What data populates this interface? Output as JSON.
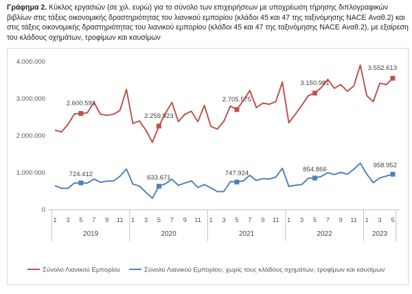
{
  "caption": {
    "prefix": "Γράφημα 2.",
    "text": "Κύκλος εργασιών (σε χιλ. ευρώ) για το σύνολο των επιχειρήσεων με υποχρέωση τήρησης διπλογραφικών βιβλίων στις τάξεις οικονομικής δραστηριότητας του λιανικού εμπορίου (κλάδοι 45 και 47 της ταξινόμησης NACE Αναθ.2) και στις τάξεις οικονομικής δραστηριότητας του λιανικού εμπορίου (κλάδοι 45 και 47 της ταξινόμησης NACE Αναθ.2), με εξαίρεση του κλάδους οχημάτων, τροφίμων και καυσίμων"
  },
  "chart_data": {
    "type": "line",
    "x": [
      "2019-01",
      "2019-02",
      "2019-03",
      "2019-04",
      "2019-05",
      "2019-06",
      "2019-07",
      "2019-08",
      "2019-09",
      "2019-10",
      "2019-11",
      "2019-12",
      "2020-01",
      "2020-02",
      "2020-03",
      "2020-04",
      "2020-05",
      "2020-06",
      "2020-07",
      "2020-08",
      "2020-09",
      "2020-10",
      "2020-11",
      "2020-12",
      "2021-01",
      "2021-02",
      "2021-03",
      "2021-04",
      "2021-05",
      "2021-06",
      "2021-07",
      "2021-08",
      "2021-09",
      "2021-10",
      "2021-11",
      "2021-12",
      "2022-01",
      "2022-02",
      "2022-03",
      "2022-04",
      "2022-05",
      "2022-06",
      "2022-07",
      "2022-08",
      "2022-09",
      "2022-10",
      "2022-11",
      "2022-12",
      "2023-01",
      "2023-02",
      "2023-03",
      "2023-04",
      "2023-05"
    ],
    "x_tick_labels": [
      "1",
      "",
      "3",
      "",
      "5",
      "",
      "7",
      "",
      "9",
      "",
      "11",
      "",
      "1",
      "",
      "3",
      "",
      "5",
      "",
      "7",
      "",
      "9",
      "",
      "11",
      "",
      "1",
      "",
      "3",
      "",
      "5",
      "",
      "7",
      "",
      "9",
      "",
      "11",
      "",
      "1",
      "",
      "3",
      "",
      "5",
      "",
      "7",
      "",
      "9",
      "",
      "11",
      "",
      "1",
      "",
      "3",
      "",
      "5"
    ],
    "year_labels": [
      "2019",
      "2020",
      "2021",
      "2022",
      "2023"
    ],
    "y_ticks": [
      "0",
      "1.000.000",
      "2.000.000",
      "3.000.000",
      "4.000.000"
    ],
    "ylim": [
      0,
      4000000
    ],
    "grid": false,
    "legend_position": "bottom",
    "series": [
      {
        "name": "Σύνολο Λιανικού Εμπορίου",
        "color": "#c0504d",
        "values": [
          2150000,
          2100000,
          2300000,
          2590000,
          2600593,
          2620000,
          2900000,
          2580000,
          2550000,
          2580000,
          2680000,
          3250000,
          2330000,
          2400000,
          2150000,
          1820000,
          2259923,
          2600000,
          2900000,
          2380000,
          2580000,
          2660000,
          2380000,
          2820000,
          2250000,
          2180000,
          2390000,
          2800000,
          2705575,
          2950000,
          3220000,
          2760000,
          2880000,
          2850000,
          2920000,
          3450000,
          2350000,
          2580000,
          2820000,
          3080000,
          3150981,
          3300000,
          3520000,
          3280000,
          3380000,
          3200000,
          3340000,
          3910000,
          3080000,
          2920000,
          3420000,
          3380000,
          3552613
        ],
        "labels": {
          "4": "2.600.593",
          "16": "2.259.923",
          "28": "2.705.575",
          "40": "3.150.981",
          "52": "3.552.613"
        }
      },
      {
        "name": "Σύνολο Λιανικού Εμπορίου, χωρίς τους κλάδους οχημάτων, τροφίμων και καυσίμων",
        "color": "#4f81bd",
        "values": [
          650000,
          580000,
          580000,
          720000,
          724412,
          720000,
          830000,
          740000,
          770000,
          780000,
          900000,
          1100000,
          690000,
          640000,
          470000,
          310000,
          633671,
          700000,
          820000,
          660000,
          720000,
          780000,
          600000,
          680000,
          590000,
          490000,
          490000,
          760000,
          747924,
          780000,
          930000,
          790000,
          840000,
          830000,
          880000,
          1120000,
          630000,
          660000,
          680000,
          850000,
          854866,
          900000,
          1000000,
          950000,
          1010000,
          960000,
          1090000,
          1260000,
          960000,
          730000,
          860000,
          910000,
          958952
        ],
        "labels": {
          "4": "724.412",
          "16": "633.671",
          "28": "747.924",
          "40": "854.866",
          "52": "958.952"
        }
      }
    ]
  }
}
